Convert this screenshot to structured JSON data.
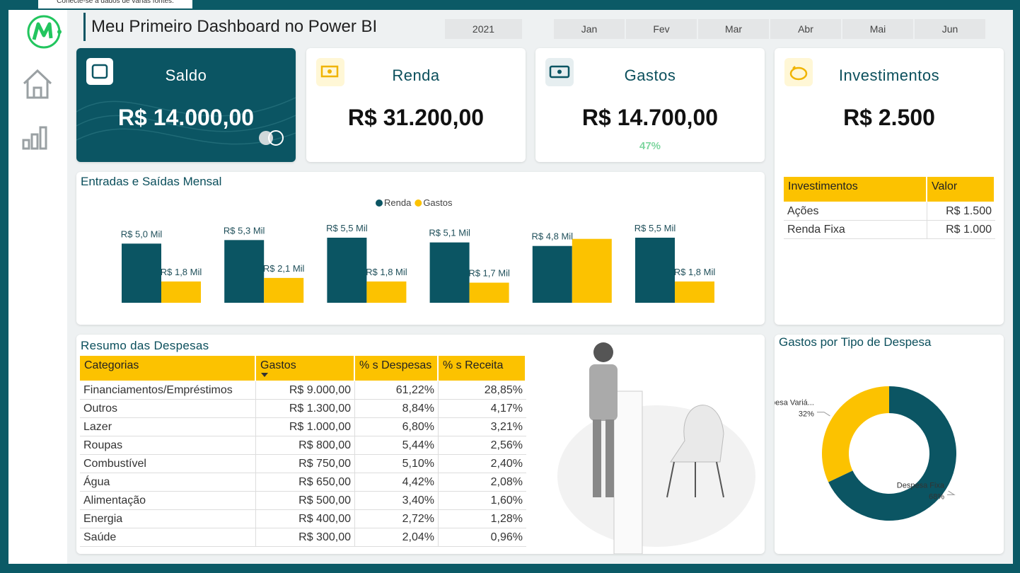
{
  "tooltip": "Conecte-se a dados de várias fontes.",
  "header": {
    "title": "Meu Primeiro Dashboard no Power BI"
  },
  "slicers": {
    "year": "2021",
    "months": [
      "Jan",
      "Fev",
      "Mar",
      "Abr",
      "Mai",
      "Jun"
    ]
  },
  "cards": [
    {
      "title": "Saldo",
      "value": "R$ 14.000,00"
    },
    {
      "title": "Renda",
      "value": "R$ 31.200,00"
    },
    {
      "title": "Gastos",
      "value": "R$ 14.700,00",
      "note": "47%"
    },
    {
      "title": "Investimentos",
      "value": "R$ 2.500"
    }
  ],
  "investments_table": {
    "columns": [
      "Investimentos",
      "Valor"
    ],
    "rows": [
      [
        "Ações",
        "R$ 1.500"
      ],
      [
        "Renda Fixa",
        "R$ 1.000"
      ]
    ]
  },
  "expenses_table": {
    "title": "Resumo das Despesas",
    "columns": [
      "Categorias",
      "Gastos",
      "% s Despesas",
      "% s Receita"
    ],
    "rows": [
      [
        "Financiamentos/Empréstimos",
        "R$ 9.000,00",
        "61,22%",
        "28,85%"
      ],
      [
        "Outros",
        "R$ 1.300,00",
        "8,84%",
        "4,17%"
      ],
      [
        "Lazer",
        "R$ 1.000,00",
        "6,80%",
        "3,21%"
      ],
      [
        "Roupas",
        "R$ 800,00",
        "5,44%",
        "2,56%"
      ],
      [
        "Combustível",
        "R$ 750,00",
        "5,10%",
        "2,40%"
      ],
      [
        "Água",
        "R$ 650,00",
        "4,42%",
        "2,08%"
      ],
      [
        "Alimentação",
        "R$ 500,00",
        "3,40%",
        "1,60%"
      ],
      [
        "Energia",
        "R$ 400,00",
        "2,72%",
        "1,28%"
      ],
      [
        "Saúde",
        "R$ 300,00",
        "2,04%",
        "0,96%"
      ]
    ]
  },
  "chart_data": [
    {
      "type": "bar",
      "title": "Entradas e Saídas Mensal",
      "categories": [
        null,
        null,
        null,
        null,
        null,
        null
      ],
      "legend": "top",
      "series": [
        {
          "name": "Renda",
          "color": "#0b5563",
          "values": [
            5.0,
            5.3,
            5.5,
            5.1,
            4.8,
            5.5
          ],
          "value_labels": [
            "R$ 5,0 Mil",
            "R$ 5,3 Mil",
            "R$ 5,5 Mil",
            "R$ 5,1 Mil",
            "R$ 4,8 Mil",
            "R$ 5,5 Mil"
          ]
        },
        {
          "name": "Gastos",
          "color": "#fcc200",
          "values": [
            1.8,
            2.1,
            1.8,
            1.7,
            5.4,
            1.8
          ],
          "value_labels": [
            "R$ 1,8 Mil",
            "R$ 2,1 Mil",
            "R$ 1,8 Mil",
            "R$ 1,7 Mil",
            null,
            "R$ 1,8 Mil"
          ]
        }
      ]
    },
    {
      "type": "pie",
      "title": "Gastos por Tipo de Despesa",
      "donut": true,
      "categories": [
        "Despesa Fixa",
        "Despesa Variá..."
      ],
      "values": [
        68,
        32
      ],
      "value_labels": [
        "68%",
        "32%"
      ],
      "colors": [
        "#0b5563",
        "#fcc200"
      ]
    }
  ]
}
